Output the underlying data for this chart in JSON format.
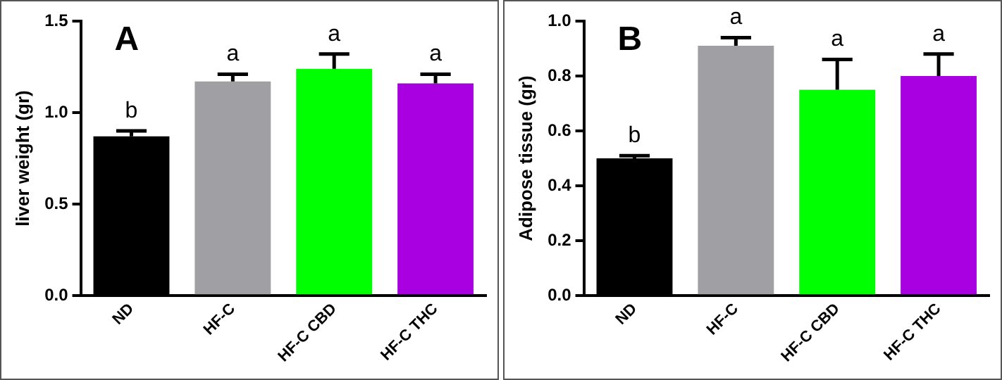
{
  "chart_data": [
    {
      "type": "bar",
      "ylabel": "liver weight (gr)",
      "categories": [
        "ND",
        "HF-C",
        "HF-C CBD",
        "HF-C THC"
      ],
      "values": [
        0.87,
        1.17,
        1.24,
        1.16
      ],
      "colors": [
        "#000000",
        "#a0a0a4",
        "#00ff00",
        "#a800e0"
      ],
      "errors": [
        [
          0.87,
          0.9
        ],
        [
          1.17,
          1.21
        ],
        [
          1.24,
          1.32
        ],
        [
          1.16,
          1.21
        ]
      ],
      "ylim": [
        0,
        1.5
      ],
      "yticks": [
        {
          "value": 0,
          "label": "0.0"
        },
        {
          "value": 0.5,
          "label": "0.5"
        },
        {
          "value": 1,
          "label": "1.0"
        },
        {
          "value": 1.5,
          "label": "1.5"
        }
      ],
      "grid": false,
      "annotations": [
        "A",
        "b",
        "a",
        "a",
        "a"
      ]
    },
    {
      "type": "bar",
      "ylabel": "Adipose tissue (gr)",
      "categories": [
        "ND",
        "HF-C",
        "HF-C CBD",
        "HF-C THC"
      ],
      "values": [
        0.5,
        0.91,
        0.75,
        0.8
      ],
      "colors": [
        "#000000",
        "#a0a0a4",
        "#00ff00",
        "#a800e0"
      ],
      "errors": [
        [
          0.5,
          0.51
        ],
        [
          0.91,
          0.94
        ],
        [
          0.75,
          0.86
        ],
        [
          0.8,
          0.88
        ]
      ],
      "ylim": [
        0,
        1
      ],
      "yticks": [
        {
          "value": 0,
          "label": "0.0"
        },
        {
          "value": 0.2,
          "label": "0.2"
        },
        {
          "value": 0.4,
          "label": "0.4"
        },
        {
          "value": 0.6,
          "label": "0.6"
        },
        {
          "value": 0.8,
          "label": "0.8"
        },
        {
          "value": 1,
          "label": "1.0"
        }
      ],
      "grid": false,
      "annotations": [
        "B",
        "b",
        "a",
        "a",
        "a"
      ]
    }
  ]
}
